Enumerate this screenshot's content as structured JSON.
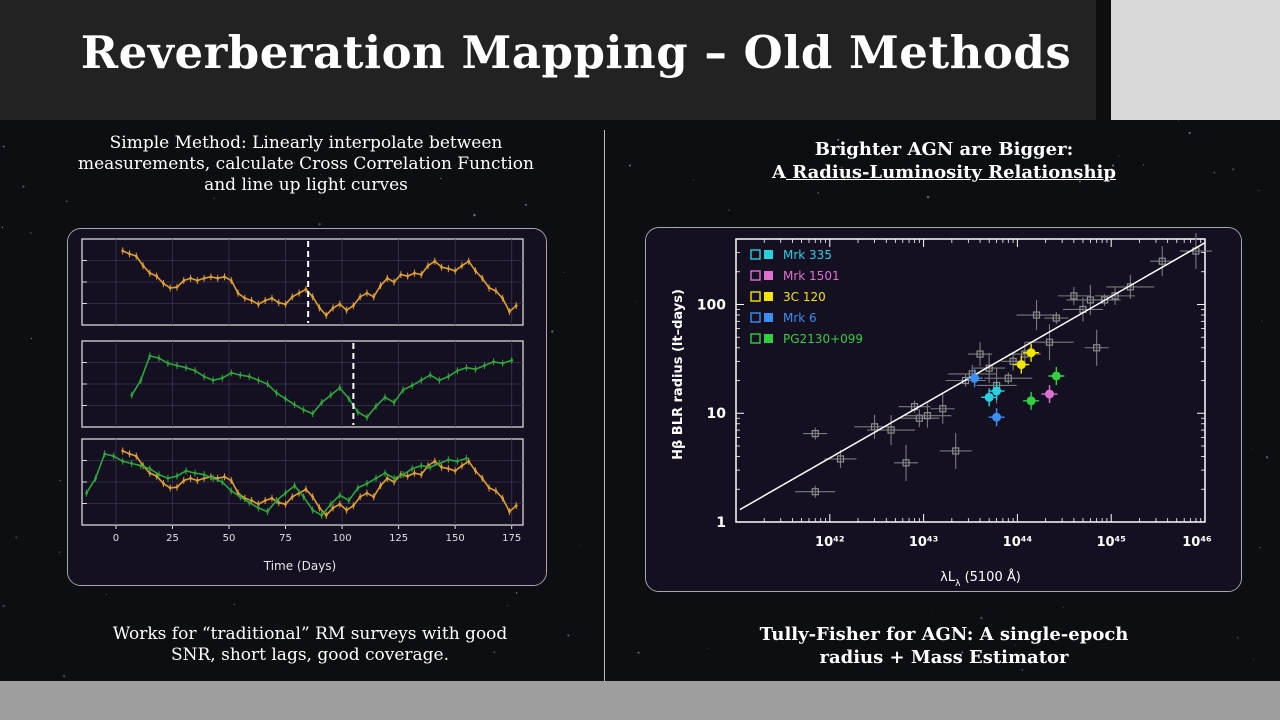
{
  "slide": {
    "title": "Reverberation Mapping – Old Methods",
    "left": {
      "intro_lines": [
        "Simple Method: Linearly interpolate between",
        "measurements, calculate Cross Correlation Function",
        "and line up light curves"
      ],
      "footer_lines": [
        "Works for “traditional” RM surveys with good",
        "SNR, short lags, good coverage."
      ]
    },
    "right": {
      "heading_line1": "Brighter AGN are Bigger:",
      "heading_prefix": "A",
      "heading_underlined": " Radius-Luminosity Relationship",
      "footer_lines": [
        "Tully-Fisher for AGN: A single-epoch",
        "radius + Mass Estimator"
      ]
    }
  },
  "colors": {
    "title_bar": "#222222",
    "corner_box": "#d9d9d9",
    "bottom_bar": "#9e9e9e",
    "continuum": "#e0a030",
    "emission_line": "#2ea63a",
    "panel_bg": "#150f22"
  },
  "chart_data": [
    {
      "type": "line",
      "xlabel": "Time (Days)",
      "xlim": [
        -15,
        180
      ],
      "xticks": [
        0,
        25,
        50,
        75,
        100,
        125,
        150,
        175
      ],
      "grid": true,
      "panels": [
        {
          "series": [
            {
              "kind": "continuum",
              "x": [
                3,
                6,
                9,
                12,
                15,
                18,
                21,
                24,
                27,
                30,
                33,
                36,
                39,
                42,
                45,
                48,
                51,
                54,
                57,
                60,
                63,
                66,
                69,
                72,
                75,
                78,
                81,
                84,
                87,
                90,
                93,
                96,
                99,
                102,
                105,
                108,
                111,
                114,
                117,
                120,
                123,
                126,
                129,
                132,
                135,
                138,
                141,
                144,
                147,
                150,
                153,
                156,
                159,
                162,
                165,
                168,
                171,
                174,
                177
              ],
              "y": [
                0.92,
                0.88,
                0.85,
                0.72,
                0.62,
                0.58,
                0.48,
                0.42,
                0.43,
                0.52,
                0.55,
                0.52,
                0.55,
                0.57,
                0.55,
                0.57,
                0.52,
                0.35,
                0.28,
                0.25,
                0.2,
                0.25,
                0.28,
                0.22,
                0.2,
                0.3,
                0.35,
                0.4,
                0.3,
                0.15,
                0.05,
                0.15,
                0.2,
                0.12,
                0.18,
                0.3,
                0.35,
                0.3,
                0.45,
                0.55,
                0.5,
                0.6,
                0.58,
                0.62,
                0.6,
                0.72,
                0.78,
                0.7,
                0.68,
                0.65,
                0.72,
                0.78,
                0.65,
                0.55,
                0.42,
                0.38,
                0.28,
                0.1,
                0.18
              ]
            }
          ],
          "marker_day": 85
        },
        {
          "series": [
            {
              "kind": "emission_line",
              "x": [
                7,
                11,
                15,
                19,
                23,
                27,
                31,
                35,
                39,
                43,
                47,
                51,
                55,
                59,
                63,
                67,
                71,
                75,
                79,
                83,
                87,
                91,
                95,
                99,
                103,
                107,
                111,
                115,
                119,
                123,
                127,
                131,
                135,
                139,
                143,
                147,
                151,
                155,
                159,
                163,
                167,
                171,
                175
              ],
              "y": [
                0.35,
                0.55,
                0.88,
                0.85,
                0.78,
                0.75,
                0.72,
                0.68,
                0.6,
                0.55,
                0.58,
                0.65,
                0.62,
                0.6,
                0.55,
                0.5,
                0.38,
                0.3,
                0.22,
                0.15,
                0.1,
                0.25,
                0.35,
                0.45,
                0.3,
                0.12,
                0.05,
                0.2,
                0.32,
                0.25,
                0.42,
                0.48,
                0.55,
                0.62,
                0.55,
                0.6,
                0.68,
                0.72,
                0.7,
                0.75,
                0.8,
                0.78,
                0.82
              ]
            }
          ],
          "marker_day": 105
        },
        {
          "series": [
            {
              "kind": "continuum",
              "x": [
                3,
                6,
                9,
                12,
                15,
                18,
                21,
                24,
                27,
                30,
                33,
                36,
                39,
                42,
                45,
                48,
                51,
                54,
                57,
                60,
                63,
                66,
                69,
                72,
                75,
                78,
                81,
                84,
                87,
                90,
                93,
                96,
                99,
                102,
                105,
                108,
                111,
                114,
                117,
                120,
                123,
                126,
                129,
                132,
                135,
                138,
                141,
                144,
                147,
                150,
                153,
                156,
                159,
                162,
                165,
                168,
                171,
                174,
                177
              ],
              "y": [
                0.92,
                0.88,
                0.85,
                0.72,
                0.62,
                0.58,
                0.48,
                0.42,
                0.43,
                0.52,
                0.55,
                0.52,
                0.55,
                0.57,
                0.55,
                0.57,
                0.52,
                0.35,
                0.28,
                0.25,
                0.2,
                0.25,
                0.28,
                0.22,
                0.2,
                0.3,
                0.35,
                0.4,
                0.3,
                0.15,
                0.05,
                0.15,
                0.2,
                0.12,
                0.18,
                0.3,
                0.35,
                0.3,
                0.45,
                0.55,
                0.5,
                0.6,
                0.58,
                0.62,
                0.6,
                0.72,
                0.78,
                0.7,
                0.68,
                0.65,
                0.72,
                0.78,
                0.65,
                0.55,
                0.42,
                0.38,
                0.28,
                0.1,
                0.18
              ]
            },
            {
              "kind": "emission_line",
              "x": [
                -13,
                -9,
                -5,
                -1,
                3,
                7,
                11,
                15,
                19,
                23,
                27,
                31,
                35,
                39,
                43,
                47,
                51,
                55,
                59,
                63,
                67,
                71,
                75,
                79,
                83,
                87,
                91,
                95,
                99,
                103,
                107,
                111,
                115,
                119,
                123,
                127,
                131,
                135,
                139,
                143,
                147,
                151,
                155
              ],
              "y": [
                0.35,
                0.55,
                0.88,
                0.85,
                0.78,
                0.75,
                0.72,
                0.68,
                0.6,
                0.55,
                0.58,
                0.65,
                0.62,
                0.6,
                0.55,
                0.5,
                0.38,
                0.3,
                0.22,
                0.15,
                0.1,
                0.25,
                0.35,
                0.45,
                0.3,
                0.12,
                0.05,
                0.2,
                0.32,
                0.25,
                0.42,
                0.48,
                0.55,
                0.62,
                0.55,
                0.6,
                0.68,
                0.72,
                0.7,
                0.75,
                0.8,
                0.78,
                0.82
              ]
            }
          ]
        }
      ]
    },
    {
      "type": "scatter",
      "log_x": true,
      "log_y": true,
      "xlabel": "λL",
      "xlabel_sub": "λ",
      "xlabel_suffix": " (5100 Å)",
      "ylabel": "Hβ BLR radius (lt–days)",
      "xlim": [
        1e+41,
        1e+46
      ],
      "ylim": [
        1,
        400
      ],
      "xtick_labels": [
        "10⁴²",
        "10⁴³",
        "10⁴⁴",
        "10⁴⁵",
        "10⁴⁶"
      ],
      "xtick_values": [
        1e+42,
        1e+43,
        1e+44,
        1e+45,
        1e+46
      ],
      "ytick_labels": [
        "1",
        "10",
        "100"
      ],
      "ytick_values": [
        1,
        10,
        100
      ],
      "fit_line": {
        "x": [
          1.1e+41,
          1e+46
        ],
        "y": [
          1.3,
          370
        ]
      },
      "legend_position": "top-left",
      "legend": [
        {
          "name": "Mrk 335",
          "color": "#29d0e0"
        },
        {
          "name": "Mrk 1501",
          "color": "#e070d0"
        },
        {
          "name": "3C 120",
          "color": "#f2e600"
        },
        {
          "name": "Mrk 6",
          "color": "#3a8ff0"
        },
        {
          "name": "PG2130+099",
          "color": "#30d040"
        }
      ],
      "background_points": [
        {
          "x": 7e+41,
          "y": 6.5
        },
        {
          "x": 1.3e+42,
          "y": 3.8
        },
        {
          "x": 3e+42,
          "y": 7.5
        },
        {
          "x": 4.5e+42,
          "y": 7
        },
        {
          "x": 6.5e+42,
          "y": 3.5
        },
        {
          "x": 8e+42,
          "y": 11.5
        },
        {
          "x": 9e+42,
          "y": 9
        },
        {
          "x": 1.1e+43,
          "y": 9.5
        },
        {
          "x": 1.6e+43,
          "y": 11
        },
        {
          "x": 2.2e+43,
          "y": 4.5
        },
        {
          "x": 2.8e+43,
          "y": 20
        },
        {
          "x": 3.3e+43,
          "y": 23
        },
        {
          "x": 4e+43,
          "y": 35
        },
        {
          "x": 5e+43,
          "y": 26
        },
        {
          "x": 6e+43,
          "y": 18
        },
        {
          "x": 8e+43,
          "y": 21
        },
        {
          "x": 9e+43,
          "y": 30
        },
        {
          "x": 1.2e+44,
          "y": 35
        },
        {
          "x": 1.6e+44,
          "y": 80
        },
        {
          "x": 2.2e+44,
          "y": 45
        },
        {
          "x": 2.6e+44,
          "y": 75
        },
        {
          "x": 4e+44,
          "y": 120
        },
        {
          "x": 5e+44,
          "y": 90
        },
        {
          "x": 6e+44,
          "y": 110
        },
        {
          "x": 7e+44,
          "y": 40
        },
        {
          "x": 8.5e+44,
          "y": 110
        },
        {
          "x": 1.1e+45,
          "y": 120
        },
        {
          "x": 1.6e+45,
          "y": 145
        },
        {
          "x": 3.5e+45,
          "y": 250
        },
        {
          "x": 8e+45,
          "y": 310
        },
        {
          "x": 7e+41,
          "y": 1.9
        }
      ],
      "highlight_points": [
        {
          "name": "Mrk 335",
          "x": 5e+43,
          "y": 14,
          "color": "#29d0e0"
        },
        {
          "name": "Mrk 335",
          "x": 6e+43,
          "y": 16,
          "color": "#29d0e0"
        },
        {
          "name": "Mrk 1501",
          "x": 2.2e+44,
          "y": 15,
          "color": "#e070d0"
        },
        {
          "name": "3C 120",
          "x": 1.1e+44,
          "y": 28,
          "color": "#f2e600"
        },
        {
          "name": "3C 120",
          "x": 1.4e+44,
          "y": 36,
          "color": "#f2e600"
        },
        {
          "name": "Mrk 6",
          "x": 3.5e+43,
          "y": 21,
          "color": "#3a8ff0"
        },
        {
          "name": "Mrk 6",
          "x": 6e+43,
          "y": 9.2,
          "color": "#3a8ff0"
        },
        {
          "name": "PG2130+099",
          "x": 1.4e+44,
          "y": 13,
          "color": "#30d040"
        },
        {
          "name": "PG2130+099",
          "x": 2.6e+44,
          "y": 22,
          "color": "#30d040"
        }
      ]
    }
  ]
}
